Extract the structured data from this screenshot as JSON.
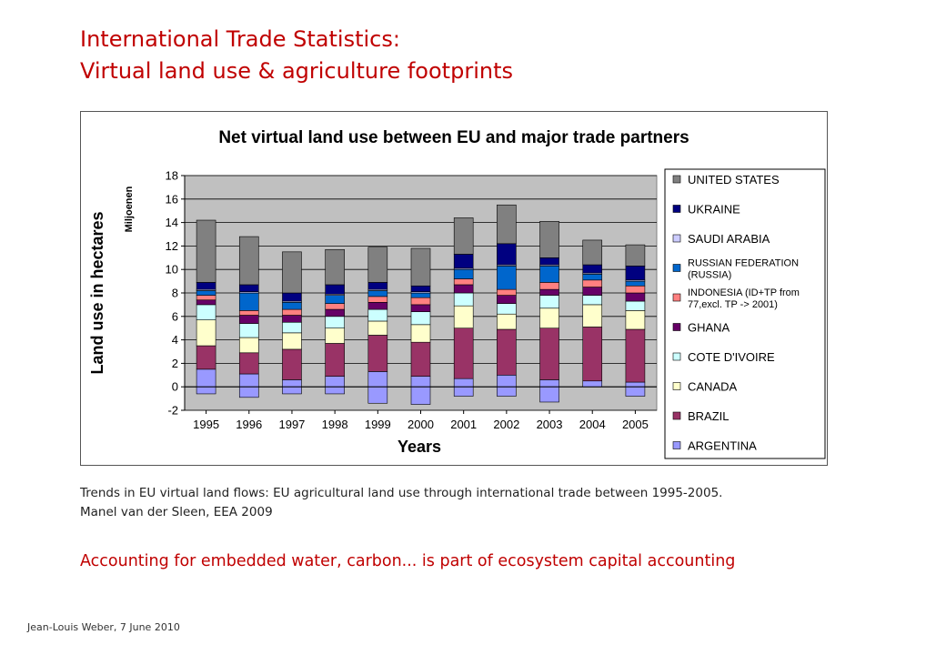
{
  "slide": {
    "title_line1": "International Trade Statistics:",
    "title_line2": "Virtual land use & agriculture footprints",
    "caption_line1": "Trends in EU virtual land flows: EU agricultural land use through international trade between 1995-2005.",
    "caption_line2": "Manel van der Sleen, EEA 2009",
    "highlight": "Accounting for embedded water, carbon... is part of ecosystem capital accounting",
    "footer": "Jean-Louis Weber, 7 June 2010"
  },
  "chart_data": {
    "type": "bar",
    "stacked": true,
    "title": "Net virtual land use between EU and major trade partners",
    "xlabel": "Years",
    "ylabel": "Land use in hectares",
    "yunit": "Miljoenen",
    "ylim": [
      -2,
      18
    ],
    "yticks": [
      -2,
      0,
      2,
      4,
      6,
      8,
      10,
      12,
      14,
      16,
      18
    ],
    "grid": true,
    "legend_position": "right",
    "categories": [
      "1995",
      "1996",
      "1997",
      "1998",
      "1999",
      "2000",
      "2001",
      "2002",
      "2003",
      "2004",
      "2005"
    ],
    "series": [
      {
        "name": "ARGENTINA",
        "color": "#9999ff",
        "values": [
          1.5,
          1.1,
          0.6,
          0.9,
          1.3,
          0.9,
          0.7,
          1.0,
          0.6,
          0.5,
          0.4
        ],
        "neg": [
          -0.6,
          -0.9,
          -0.6,
          -0.6,
          -1.4,
          -1.5,
          -0.8,
          -0.8,
          -1.3,
          0,
          -0.8
        ]
      },
      {
        "name": "BRAZIL",
        "color": "#993366",
        "values": [
          2.0,
          1.8,
          2.6,
          2.8,
          3.1,
          2.9,
          4.3,
          3.9,
          4.4,
          4.6,
          4.5
        ]
      },
      {
        "name": "CANADA",
        "color": "#ffffcc",
        "values": [
          2.2,
          1.3,
          1.4,
          1.3,
          1.2,
          1.5,
          1.9,
          1.3,
          1.7,
          1.9,
          1.6
        ]
      },
      {
        "name": "COTE D'IVOIRE",
        "color": "#ccffff",
        "values": [
          1.3,
          1.2,
          0.9,
          1.0,
          1.0,
          1.1,
          1.1,
          0.9,
          1.1,
          0.8,
          0.8
        ]
      },
      {
        "name": "GHANA",
        "color": "#660066",
        "values": [
          0.4,
          0.7,
          0.6,
          0.6,
          0.6,
          0.6,
          0.7,
          0.7,
          0.5,
          0.7,
          0.7
        ]
      },
      {
        "name": "INDONESIA (ID+TP from 77,excl. TP -> 2001)",
        "color": "#ff8080",
        "values": [
          0.4,
          0.4,
          0.5,
          0.5,
          0.5,
          0.6,
          0.5,
          0.5,
          0.6,
          0.6,
          0.6
        ]
      },
      {
        "name": "RUSSIAN FEDERATION (RUSSIA)",
        "color": "#0066cc",
        "values": [
          0.4,
          1.5,
          0.6,
          0.7,
          0.5,
          0.4,
          0.8,
          2.0,
          1.4,
          0.5,
          0.4
        ]
      },
      {
        "name": "SAUDI ARABIA",
        "color": "#ccccff",
        "values": [
          0.1,
          0.1,
          0.1,
          0.1,
          0.1,
          0.1,
          0.1,
          0.1,
          0.1,
          0.1,
          0.1
        ]
      },
      {
        "name": "UKRAINE",
        "color": "#000080",
        "values": [
          0.6,
          0.6,
          0.7,
          0.8,
          0.6,
          0.5,
          1.2,
          1.8,
          0.6,
          0.7,
          1.2
        ]
      },
      {
        "name": "UNITED STATES",
        "color": "#808080",
        "values": [
          5.3,
          4.1,
          3.5,
          3.0,
          3.0,
          3.2,
          3.1,
          3.3,
          3.1,
          2.1,
          1.8
        ]
      }
    ]
  }
}
